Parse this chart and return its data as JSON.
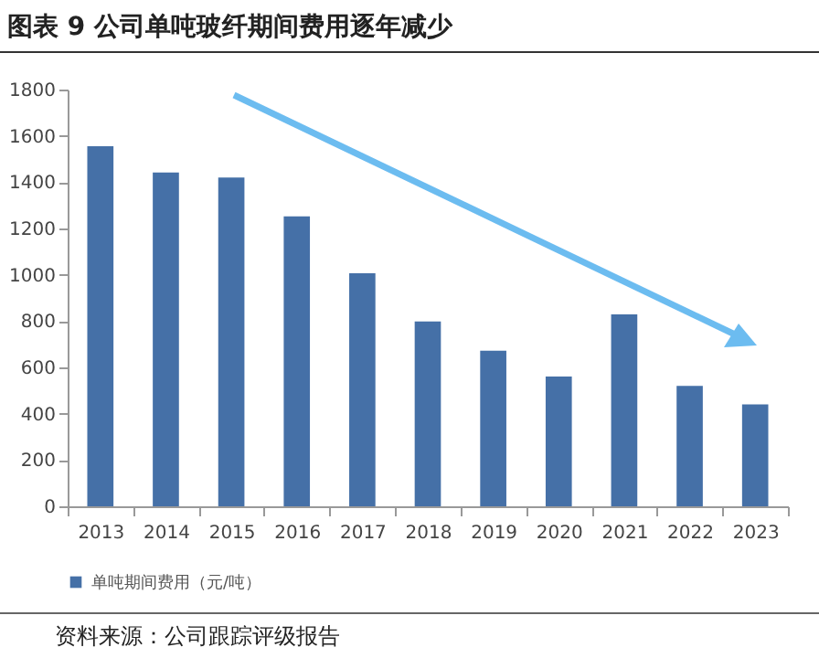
{
  "chart_data": {
    "type": "bar",
    "title": "图表 9 公司单吨玻纤期间费用逐年减少",
    "categories": [
      "2013",
      "2014",
      "2015",
      "2016",
      "2017",
      "2018",
      "2019",
      "2020",
      "2021",
      "2022",
      "2023"
    ],
    "series": [
      {
        "name": "单吨期间费用（元/吨）",
        "color": "#4570a7",
        "values": [
          1555,
          1442,
          1420,
          1252,
          1007,
          798,
          672,
          561,
          829,
          520,
          440
        ]
      }
    ],
    "ylim": [
      0,
      1800
    ],
    "yticks": [
      0,
      200,
      400,
      600,
      800,
      1000,
      1200,
      1400,
      1600,
      1800
    ],
    "grid": false,
    "legend": "bottom",
    "annotations": [
      "资料来源：公司跟踪评级报告"
    ]
  }
}
